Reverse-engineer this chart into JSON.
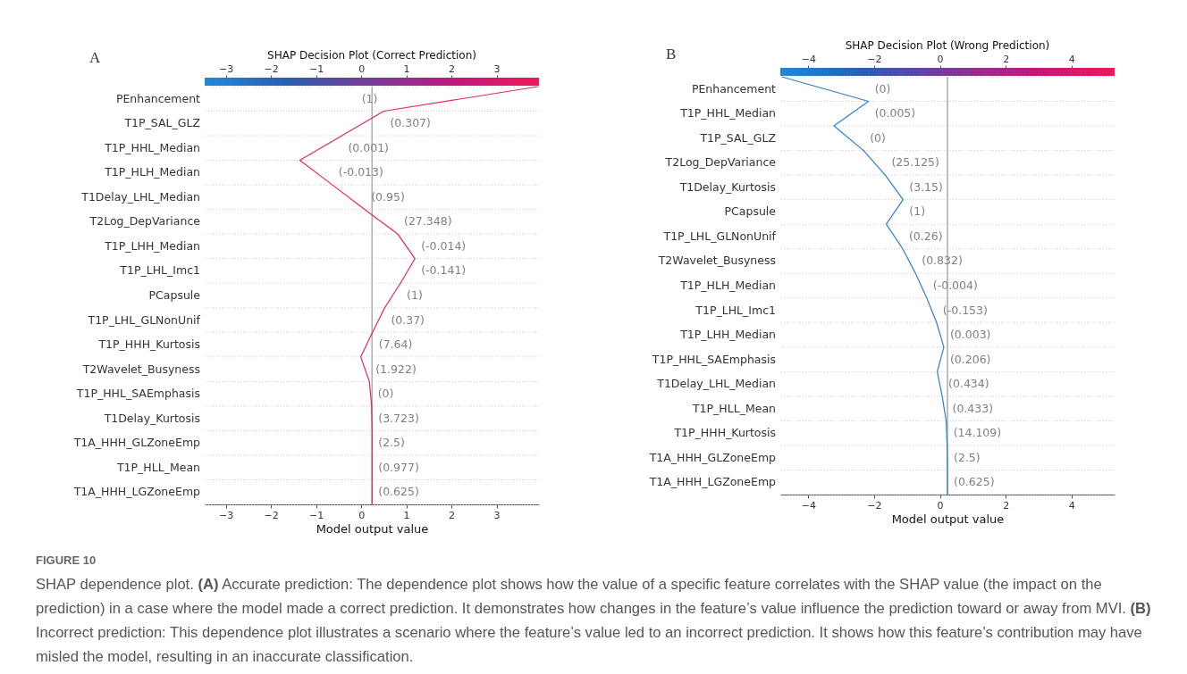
{
  "chart_data": [
    {
      "type": "line",
      "orientation": "horizontal",
      "title": "SHAP Decision Plot (Correct Prediction)",
      "xlabel": "Model output value",
      "xlim": [
        -3.47,
        3.94
      ],
      "xticks": [
        -3,
        -2,
        -1,
        0,
        1,
        2,
        3
      ],
      "x2lim": [
        -3.47,
        3.94
      ],
      "x2ticks": [
        -3,
        -2,
        -1,
        0,
        1,
        2,
        3
      ],
      "categories": [
        null,
        null,
        null,
        null,
        null,
        null,
        null,
        null,
        null,
        null,
        null,
        null,
        null,
        null,
        null,
        null,
        null,
        null
      ],
      "grid": "y",
      "tick_labels": "x",
      "series": [
        {
          "color": "#e8245c",
          "values": [
            3.92,
            0.5,
            -0.43,
            -1.36,
            -0.64,
            0.08,
            0.81,
            1.19,
            0.87,
            0.52,
            0.25,
            -0.01,
            0.18,
            0.23,
            0.24,
            0.24,
            0.24,
            0.24
          ]
        }
      ],
      "ref_lines": [
        {
          "axis": "x",
          "value": 0.24,
          "color": "#b0b0b0"
        }
      ],
      "annotations": [
        "A",
        "PEnhancement",
        "T1P_SAL_GLZ",
        "T1P_HHL_Median",
        "T1P_HLH_Median",
        "T1Delay_LHL_Median",
        "T2Log_DepVariance",
        "T1P_LHH_Median",
        "T1P_LHL_Imc1",
        "PCapsule",
        "T1P_LHL_GLNonUnif",
        "T1P_HHH_Kurtosis",
        "T2Wavelet_Busyness",
        "T1P_HHL_SAEmphasis",
        "T1Delay_Kurtosis",
        "T1A_HHH_GLZoneEmp",
        "T1P_HLL_Mean",
        "T1A_HHH_LGZoneEmp",
        "(1)",
        "(0.307)",
        "(0.001)",
        "(-0.013)",
        "(0.95)",
        "(27.348)",
        "(-0.014)",
        "(-0.141)",
        "(1)",
        "(0.37)",
        "(7.64)",
        "(1.922)",
        "(0)",
        "(3.723)",
        "(2.5)",
        "(0.977)",
        "(0.625)",
        "FIGURE 10",
        "SHAP dependence plot. (A) Accurate prediction: The dependence plot shows how the value of a specific feature correlates with the SHAP value (the impact on the prediction) in a case where the model made a correct prediction. It demonstrates how changes in the feature’s value influence the prediction toward or away from MVI. (B) Incorrect prediction: This dependence plot illustrates a scenario where the feature’s value led to an incorrect prediction. It shows how this feature’s contribution may have misled the model, resulting in an inaccurate classification."
      ]
    },
    {
      "type": "line",
      "orientation": "horizontal",
      "title": "SHAP Decision Plot (Wrong Prediction)",
      "xlabel": "Model output value",
      "xlim": [
        -4.85,
        5.31
      ],
      "xticks": [
        -4,
        -2,
        0,
        2,
        4
      ],
      "x2lim": [
        -4.85,
        5.31
      ],
      "x2ticks": [
        -4,
        -2,
        0,
        2,
        4
      ],
      "categories": [
        null,
        null,
        null,
        null,
        null,
        null,
        null,
        null,
        null,
        null,
        null,
        null,
        null,
        null,
        null,
        null,
        null,
        null
      ],
      "grid": "y",
      "tick_labels": "x",
      "series": [
        {
          "color": "#2e7fd0",
          "values": [
            -4.81,
            -2.17,
            -3.22,
            -2.32,
            -1.66,
            -1.12,
            -1.63,
            -1.13,
            -0.74,
            -0.4,
            -0.1,
            0.12,
            -0.08,
            0.07,
            0.19,
            0.22,
            0.23,
            0.23
          ]
        }
      ],
      "ref_lines": [
        {
          "axis": "x",
          "value": 0.23,
          "color": "#b0b0b0"
        }
      ],
      "annotations": [
        "B",
        "PEnhancement",
        "T1P_HHL_Median",
        "T1P_SAL_GLZ",
        "T2Log_DepVariance",
        "T1Delay_Kurtosis",
        "PCapsule",
        "T1P_LHL_GLNonUnif",
        "T2Wavelet_Busyness",
        "T1P_HLH_Median",
        "T1P_LHL_Imc1",
        "T1P_LHH_Median",
        "T1P_HHL_SAEmphasis",
        "T1Delay_LHL_Median",
        "T1P_HLL_Mean",
        "T1P_HHH_Kurtosis",
        "T1A_HHH_GLZoneEmp",
        "T1A_HHH_LGZoneEmp",
        "(0)",
        "(0.005)",
        "(0)",
        "(25.125)",
        "(3.15)",
        "(1)",
        "(0.26)",
        "(0.832)",
        "(-0.004)",
        "(-0.153)",
        "(0.003)",
        "(0.206)",
        "(0.434)",
        "(0.433)",
        "(14.109)",
        "(2.5)",
        "(0.625)"
      ]
    }
  ]
}
